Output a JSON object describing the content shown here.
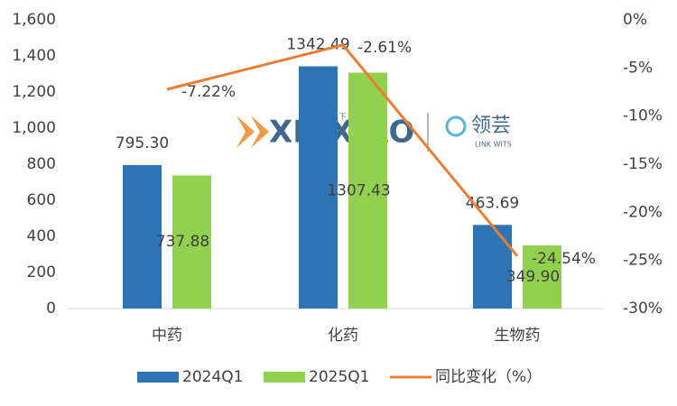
{
  "chart_data": {
    "type": "bar-line",
    "categories": [
      "中药",
      "化药",
      "生物药"
    ],
    "series": [
      {
        "name": "2024Q1",
        "color": "#2e75b6",
        "values": [
          795.3,
          1342.49,
          463.69
        ],
        "value_labels": [
          "795.30",
          "1342.49",
          "463.69"
        ]
      },
      {
        "name": "2025Q1",
        "color": "#92d050",
        "values": [
          737.88,
          1307.43,
          349.9
        ],
        "value_labels": [
          "737.88",
          "1307.43",
          "349.90"
        ]
      },
      {
        "name": "同比变化（%）",
        "color": "#ed7d31",
        "axis": "y2",
        "values": [
          -7.22,
          -2.61,
          -24.54
        ],
        "value_labels": [
          "-7.22%",
          "-2.61%",
          "-24.54%"
        ]
      }
    ],
    "ylim": [
      0,
      1600
    ],
    "yticks": [
      0,
      200,
      400,
      600,
      800,
      {
        "value": 1000,
        "label": "1,000"
      },
      {
        "value": 1200,
        "label": "1,200"
      },
      {
        "value": 1400,
        "label": "1,400"
      },
      {
        "value": 1600,
        "label": "1,600"
      }
    ],
    "y2lim": [
      -30,
      0
    ],
    "y2ticks": [
      {
        "value": 0,
        "label": "0%"
      },
      {
        "value": -5,
        "label": "-5%"
      },
      {
        "value": -10,
        "label": "-10%"
      },
      {
        "value": -15,
        "label": "-15%"
      },
      {
        "value": -20,
        "label": "-20%"
      },
      {
        "value": -25,
        "label": "-25%"
      },
      {
        "value": -30,
        "label": "-30%"
      }
    ],
    "watermark": [
      "XINXIAO",
      "资本，通天下！",
      "领芸",
      "LINK WITS"
    ]
  }
}
